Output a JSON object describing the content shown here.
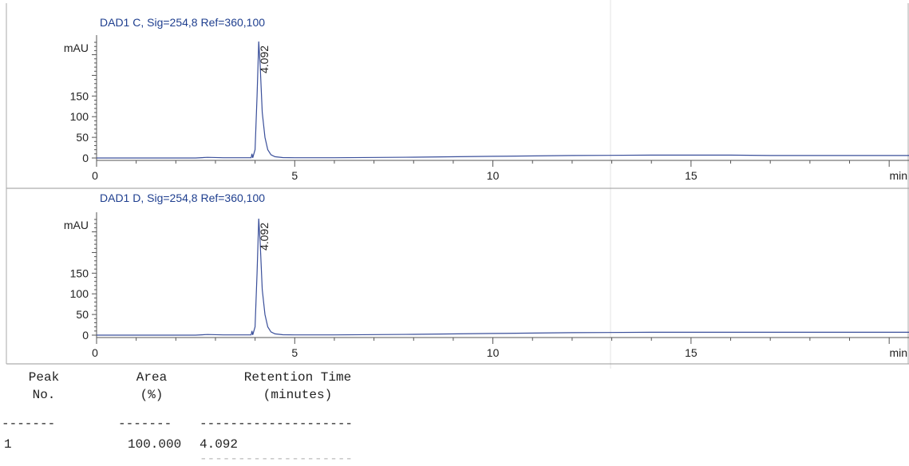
{
  "chart_data": [
    {
      "type": "line",
      "title": "DAD1 C, Sig=254,8 Ref=360,100",
      "ylabel": "mAU",
      "xlabel": "min",
      "xlim": [
        0,
        20.5
      ],
      "ylim": [
        -5,
        285
      ],
      "x_ticks": [
        0,
        5,
        10,
        15
      ],
      "y_ticks": [
        0,
        50,
        100,
        150
      ],
      "peaks": [
        {
          "retention_time": 4.092,
          "label": "4.092",
          "height": 282
        }
      ],
      "series": [
        {
          "x": [
            0,
            2.5,
            2.8,
            3.2,
            3.9,
            3.92,
            3.94,
            4.0,
            4.05,
            4.092,
            4.13,
            4.18,
            4.25,
            4.32,
            4.4,
            4.5,
            4.7,
            5.0,
            6.0,
            8.0,
            10.0,
            12.0,
            14.0,
            16.0,
            17.0,
            18.0,
            20.5
          ],
          "y": [
            0,
            0,
            1.5,
            0.5,
            0.5,
            10,
            0.5,
            20,
            150,
            282,
            220,
            110,
            50,
            20,
            8,
            3,
            1,
            0.5,
            0.5,
            2,
            4,
            6,
            7,
            7,
            6,
            6,
            6
          ]
        }
      ]
    },
    {
      "type": "line",
      "title": "DAD1 D, Sig=254,8 Ref=360,100",
      "ylabel": "mAU",
      "xlabel": "min",
      "xlim": [
        0,
        20.5
      ],
      "ylim": [
        -5,
        285
      ],
      "x_ticks": [
        0,
        5,
        10,
        15
      ],
      "y_ticks": [
        0,
        50,
        100,
        150
      ],
      "peaks": [
        {
          "retention_time": 4.092,
          "label": "4.092",
          "height": 282
        }
      ],
      "series": [
        {
          "x": [
            0,
            2.5,
            2.8,
            3.2,
            3.9,
            3.92,
            3.94,
            4.0,
            4.05,
            4.092,
            4.13,
            4.18,
            4.25,
            4.32,
            4.4,
            4.5,
            4.7,
            5.0,
            6.0,
            8.0,
            10.0,
            12.0,
            14.0,
            16.0,
            17.0,
            18.0,
            20.5
          ],
          "y": [
            0,
            0,
            1.5,
            0.5,
            0.5,
            10,
            0.5,
            20,
            150,
            282,
            220,
            110,
            50,
            20,
            8,
            3,
            1,
            0.5,
            0.5,
            2,
            4,
            6,
            7,
            7,
            7,
            7,
            7
          ]
        }
      ]
    }
  ],
  "peak_table": {
    "headers": {
      "peak_line1": "Peak",
      "peak_line2": "No.",
      "area_line1": "Area",
      "area_line2": "(%)",
      "rt_line1": "Retention Time",
      "rt_line2": "(minutes)"
    },
    "dash_peak": "-------",
    "dash_area": "-------",
    "dash_rt": "--------------------",
    "rows": [
      {
        "peak": "1",
        "area": "100.000",
        "rt": "4.092"
      }
    ]
  },
  "colors": {
    "trace": "#3a4f9a",
    "axis": "#555555",
    "title": "#1f3f8f",
    "text": "#222222"
  }
}
